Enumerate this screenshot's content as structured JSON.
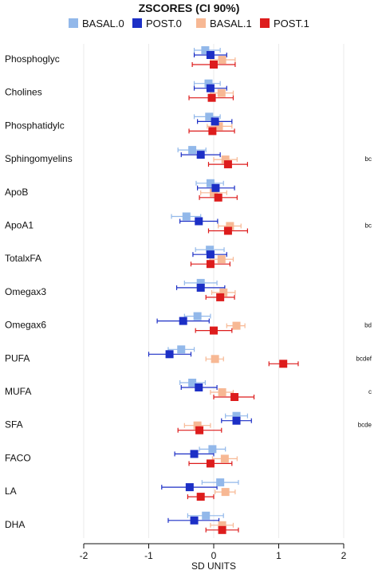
{
  "chart_data": {
    "type": "forest",
    "title": "ZSCORES (CI 90%)",
    "xlabel": "SD UNITS",
    "xlim": [
      -2,
      2
    ],
    "xticks": [
      "-2",
      "-1",
      "0",
      "1",
      "2"
    ],
    "xtick_values": [
      -2,
      -1,
      0,
      1,
      2
    ],
    "legend_position": "top",
    "vertical_gridlines": true,
    "series": [
      {
        "name": "BASAL.0",
        "color": "#92b8ea"
      },
      {
        "name": "POST.0",
        "color": "#1c2fc6"
      },
      {
        "name": "BASAL.1",
        "color": "#f7b894"
      },
      {
        "name": "POST.1",
        "color": "#dd1c1c"
      }
    ],
    "categories": [
      {
        "label": "Phosphoglyc",
        "annotation": "",
        "points": [
          {
            "est": -0.13,
            "lo": -0.3,
            "hi": 0.1
          },
          {
            "est": -0.05,
            "lo": -0.3,
            "hi": 0.2
          },
          {
            "est": 0.13,
            "lo": -0.05,
            "hi": 0.33
          },
          {
            "est": 0.0,
            "lo": -0.33,
            "hi": 0.33
          }
        ]
      },
      {
        "label": "Cholines",
        "annotation": "",
        "points": [
          {
            "est": -0.08,
            "lo": -0.3,
            "hi": 0.1
          },
          {
            "est": -0.05,
            "lo": -0.3,
            "hi": 0.2
          },
          {
            "est": 0.12,
            "lo": -0.05,
            "hi": 0.3
          },
          {
            "est": -0.03,
            "lo": -0.38,
            "hi": 0.3
          }
        ]
      },
      {
        "label": "Phosphatidylc",
        "annotation": "",
        "points": [
          {
            "est": -0.07,
            "lo": -0.3,
            "hi": 0.1
          },
          {
            "est": 0.02,
            "lo": -0.25,
            "hi": 0.28
          },
          {
            "est": 0.08,
            "lo": -0.1,
            "hi": 0.28
          },
          {
            "est": -0.02,
            "lo": -0.38,
            "hi": 0.32
          }
        ]
      },
      {
        "label": "Sphingomyelins",
        "annotation": "bc",
        "points": [
          {
            "est": -0.33,
            "lo": -0.55,
            "hi": -0.12
          },
          {
            "est": -0.2,
            "lo": -0.5,
            "hi": 0.1
          },
          {
            "est": 0.18,
            "lo": 0.0,
            "hi": 0.36
          },
          {
            "est": 0.22,
            "lo": -0.08,
            "hi": 0.52
          }
        ]
      },
      {
        "label": "ApoB",
        "annotation": "",
        "points": [
          {
            "est": -0.05,
            "lo": -0.27,
            "hi": 0.15
          },
          {
            "est": 0.03,
            "lo": -0.25,
            "hi": 0.32
          },
          {
            "est": 0.0,
            "lo": -0.2,
            "hi": 0.2
          },
          {
            "est": 0.07,
            "lo": -0.22,
            "hi": 0.36
          }
        ]
      },
      {
        "label": "ApoA1",
        "annotation": "bc",
        "points": [
          {
            "est": -0.42,
            "lo": -0.65,
            "hi": -0.2
          },
          {
            "est": -0.23,
            "lo": -0.52,
            "hi": 0.06
          },
          {
            "est": 0.25,
            "lo": 0.07,
            "hi": 0.42
          },
          {
            "est": 0.22,
            "lo": -0.08,
            "hi": 0.52
          }
        ]
      },
      {
        "label": "TotalxFA",
        "annotation": "",
        "points": [
          {
            "est": -0.06,
            "lo": -0.28,
            "hi": 0.16
          },
          {
            "est": -0.05,
            "lo": -0.32,
            "hi": 0.2
          },
          {
            "est": 0.12,
            "lo": -0.06,
            "hi": 0.3
          },
          {
            "est": -0.05,
            "lo": -0.35,
            "hi": 0.25
          }
        ]
      },
      {
        "label": "Omegax3",
        "annotation": "",
        "points": [
          {
            "est": -0.2,
            "lo": -0.45,
            "hi": 0.05
          },
          {
            "est": -0.2,
            "lo": -0.57,
            "hi": 0.17
          },
          {
            "est": 0.15,
            "lo": -0.03,
            "hi": 0.33
          },
          {
            "est": 0.1,
            "lo": -0.12,
            "hi": 0.32
          }
        ]
      },
      {
        "label": "Omegax6",
        "annotation": "bd",
        "points": [
          {
            "est": -0.25,
            "lo": -0.45,
            "hi": -0.05
          },
          {
            "est": -0.47,
            "lo": -0.87,
            "hi": -0.07
          },
          {
            "est": 0.35,
            "lo": 0.2,
            "hi": 0.48
          },
          {
            "est": 0.0,
            "lo": -0.28,
            "hi": 0.28
          }
        ]
      },
      {
        "label": "PUFA",
        "annotation": "bcdef",
        "points": [
          {
            "est": -0.5,
            "lo": -0.7,
            "hi": -0.3
          },
          {
            "est": -0.68,
            "lo": -1.0,
            "hi": -0.35
          },
          {
            "est": 0.02,
            "lo": -0.12,
            "hi": 0.15
          },
          {
            "est": 1.07,
            "lo": 0.85,
            "hi": 1.3
          }
        ]
      },
      {
        "label": "MUFA",
        "annotation": "c",
        "points": [
          {
            "est": -0.33,
            "lo": -0.52,
            "hi": -0.13
          },
          {
            "est": -0.23,
            "lo": -0.5,
            "hi": 0.05
          },
          {
            "est": 0.13,
            "lo": -0.05,
            "hi": 0.3
          },
          {
            "est": 0.32,
            "lo": 0.0,
            "hi": 0.62
          }
        ]
      },
      {
        "label": "SFA",
        "annotation": "bcde",
        "points": [
          {
            "est": 0.35,
            "lo": 0.18,
            "hi": 0.52
          },
          {
            "est": 0.35,
            "lo": 0.12,
            "hi": 0.58
          },
          {
            "est": -0.25,
            "lo": -0.45,
            "hi": -0.05
          },
          {
            "est": -0.22,
            "lo": -0.55,
            "hi": 0.12
          }
        ]
      },
      {
        "label": "FACO",
        "annotation": "",
        "points": [
          {
            "est": -0.02,
            "lo": -0.22,
            "hi": 0.18
          },
          {
            "est": -0.3,
            "lo": -0.6,
            "hi": 0.0
          },
          {
            "est": 0.17,
            "lo": -0.02,
            "hi": 0.36
          },
          {
            "est": -0.05,
            "lo": -0.38,
            "hi": 0.28
          }
        ]
      },
      {
        "label": "LA",
        "annotation": "",
        "points": [
          {
            "est": 0.1,
            "lo": -0.18,
            "hi": 0.38
          },
          {
            "est": -0.37,
            "lo": -0.8,
            "hi": 0.05
          },
          {
            "est": 0.18,
            "lo": 0.02,
            "hi": 0.33
          },
          {
            "est": -0.2,
            "lo": -0.4,
            "hi": 0.0
          }
        ]
      },
      {
        "label": "DHA",
        "annotation": "",
        "points": [
          {
            "est": -0.12,
            "lo": -0.4,
            "hi": 0.15
          },
          {
            "est": -0.3,
            "lo": -0.7,
            "hi": 0.08
          },
          {
            "est": 0.13,
            "lo": -0.05,
            "hi": 0.3
          },
          {
            "est": 0.13,
            "lo": -0.12,
            "hi": 0.38
          }
        ]
      }
    ]
  }
}
